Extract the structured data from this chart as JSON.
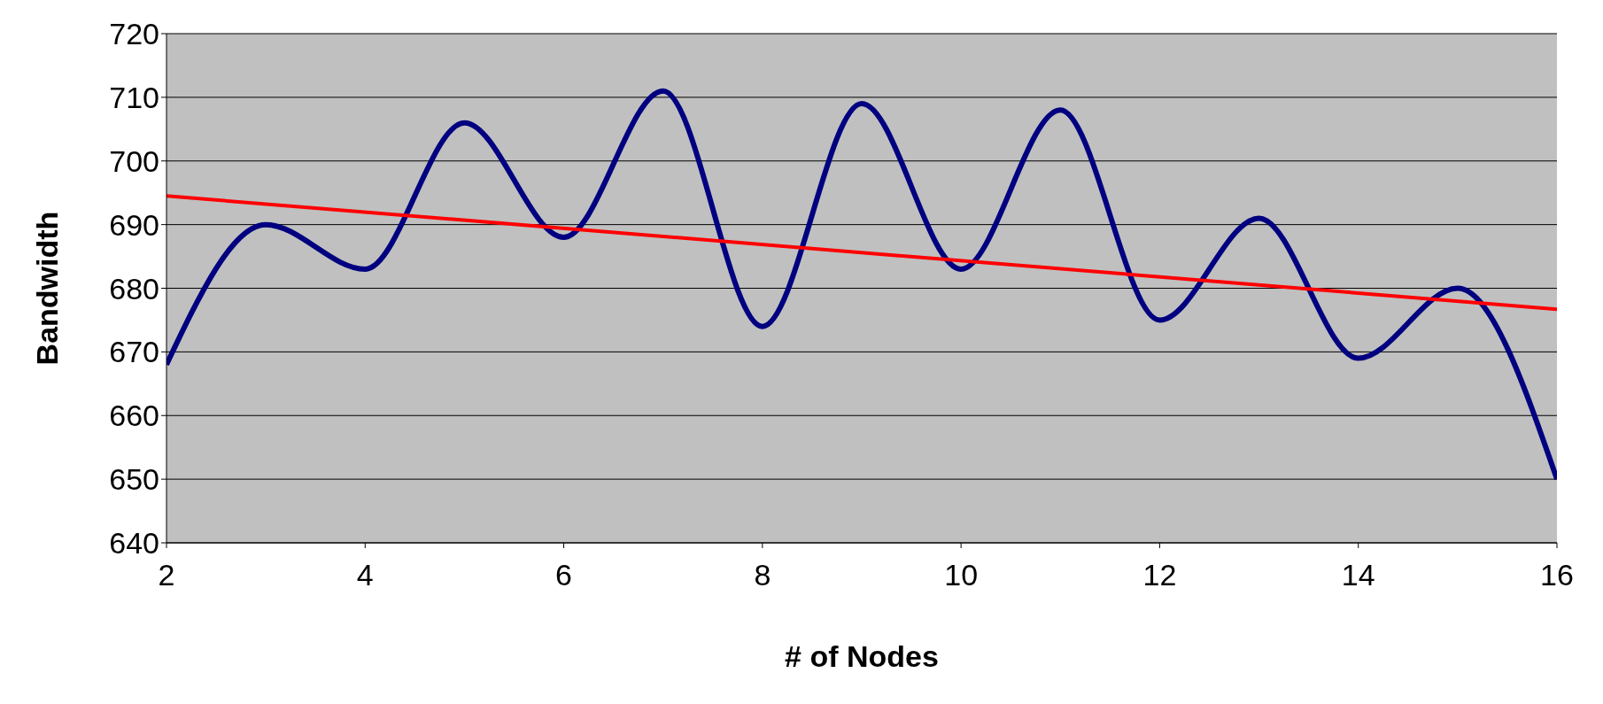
{
  "chart_data": {
    "type": "line",
    "xlabel": "# of Nodes",
    "ylabel": "Bandwidth",
    "x": [
      2,
      3,
      4,
      5,
      6,
      7,
      8,
      9,
      10,
      11,
      12,
      13,
      14,
      15,
      16
    ],
    "series": [
      {
        "color": "#000080",
        "values": [
          668,
          690,
          683,
          706,
          688,
          711,
          674,
          709,
          683,
          708,
          675,
          691,
          669,
          680,
          650
        ]
      },
      {
        "type": "line",
        "color": "#ff0000",
        "x": [
          2,
          16
        ],
        "values": [
          694.5,
          676.7
        ]
      }
    ],
    "xlim": [
      2,
      16
    ],
    "xticks": [
      2,
      4,
      6,
      8,
      10,
      12,
      14,
      16
    ],
    "ylim": [
      640,
      720
    ],
    "yticks": [
      640,
      650,
      660,
      670,
      680,
      690,
      700,
      710,
      720
    ],
    "grid": "y",
    "marker": "none",
    "line_style": "solid"
  }
}
